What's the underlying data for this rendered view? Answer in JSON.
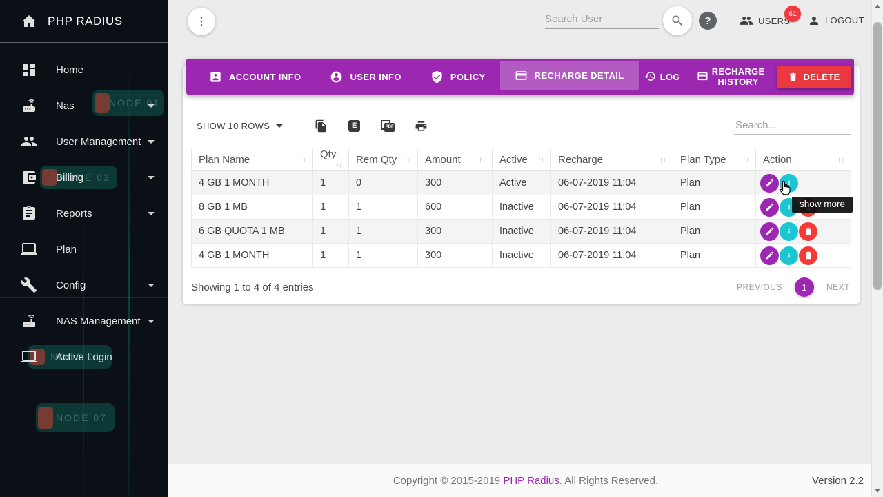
{
  "app": {
    "title": "PHP RADIUS"
  },
  "colors": {
    "primary": "#9c27b0",
    "delete_red": "#e9383f",
    "action_red": "#f23b36",
    "info_teal": "#1cc5cf",
    "badge_red": "#ef3a40"
  },
  "sidebar": {
    "items": [
      {
        "label": "Home",
        "icon": "dashboard-icon",
        "caret": false
      },
      {
        "label": "Nas",
        "icon": "router-icon",
        "caret": true
      },
      {
        "label": "User Management",
        "icon": "people-icon",
        "caret": true
      },
      {
        "label": "Billing",
        "icon": "wallet-icon",
        "caret": true
      },
      {
        "label": "Reports",
        "icon": "clipboard-icon",
        "caret": true
      },
      {
        "label": "Plan",
        "icon": "laptop-icon",
        "caret": false
      },
      {
        "label": "Config",
        "icon": "wrench-icon",
        "caret": true
      },
      {
        "label": "NAS Management",
        "icon": "router-icon",
        "caret": true
      },
      {
        "label": "Active Login",
        "icon": "laptop-icon",
        "caret": false
      }
    ],
    "decor_labels": [
      "NODE 01",
      "NODE 03",
      "NODE 01",
      "NODE 07"
    ]
  },
  "topbar": {
    "search_placeholder": "Search User",
    "users_label": "USERS",
    "users_badge": "61",
    "logout_label": "LOGOUT"
  },
  "tabs": [
    {
      "label": "ACCOUNT INFO",
      "icon": "account-box-icon",
      "active": false
    },
    {
      "label": "USER INFO",
      "icon": "account-circle-icon",
      "active": false
    },
    {
      "label": "POLICY",
      "icon": "shield-check-icon",
      "active": false
    },
    {
      "label": "RECHARGE DETAIL",
      "icon": "credit-card-icon",
      "active": true
    }
  ],
  "header_actions": {
    "log": "LOG",
    "recharge_history": "RECHARGE HISTORY",
    "delete": "DELETE"
  },
  "toolbar": {
    "show_rows": "SHOW 10 ROWS",
    "search_placeholder": "Search..."
  },
  "table": {
    "columns": [
      {
        "label": "Plan Name",
        "sort": "none"
      },
      {
        "label": "Qty",
        "sort": "none"
      },
      {
        "label": "Rem Qty",
        "sort": "none"
      },
      {
        "label": "Amount",
        "sort": "none"
      },
      {
        "label": "Active",
        "sort": "asc"
      },
      {
        "label": "Recharge",
        "sort": "none"
      },
      {
        "label": "Plan Type",
        "sort": "none"
      },
      {
        "label": "Action",
        "sort": "none"
      }
    ],
    "rows": [
      {
        "plan_name": "4 GB 1 MONTH",
        "qty": "1",
        "rem_qty": "0",
        "amount": "300",
        "active": "Active",
        "recharge": "06-07-2019 11:04",
        "plan_type": "Plan",
        "actions": [
          "edit",
          "info"
        ]
      },
      {
        "plan_name": "8 GB 1 MB",
        "qty": "1",
        "rem_qty": "1",
        "amount": "600",
        "active": "Inactive",
        "recharge": "06-07-2019 11:04",
        "plan_type": "Plan",
        "actions": [
          "edit",
          "info",
          "delete"
        ]
      },
      {
        "plan_name": "6 GB QUOTA 1 MB",
        "qty": "1",
        "rem_qty": "1",
        "amount": "300",
        "active": "Inactive",
        "recharge": "06-07-2019 11:04",
        "plan_type": "Plan",
        "actions": [
          "edit",
          "info",
          "delete"
        ]
      },
      {
        "plan_name": "4 GB 1 MONTH",
        "qty": "1",
        "rem_qty": "1",
        "amount": "300",
        "active": "Inactive",
        "recharge": "06-07-2019 11:04",
        "plan_type": "Plan",
        "actions": [
          "edit",
          "info",
          "delete"
        ]
      }
    ]
  },
  "pagination": {
    "summary": "Showing 1 to 4 of 4 entries",
    "previous": "PREVIOUS",
    "page": "1",
    "next": "NEXT"
  },
  "tooltip": {
    "text": "show more"
  },
  "footer": {
    "copyright_prefix": "Copyright © 2015-2019 ",
    "brand": "PHP Radius",
    "copyright_suffix": ". All Rights Reserved.",
    "version": "Version 2.2"
  }
}
